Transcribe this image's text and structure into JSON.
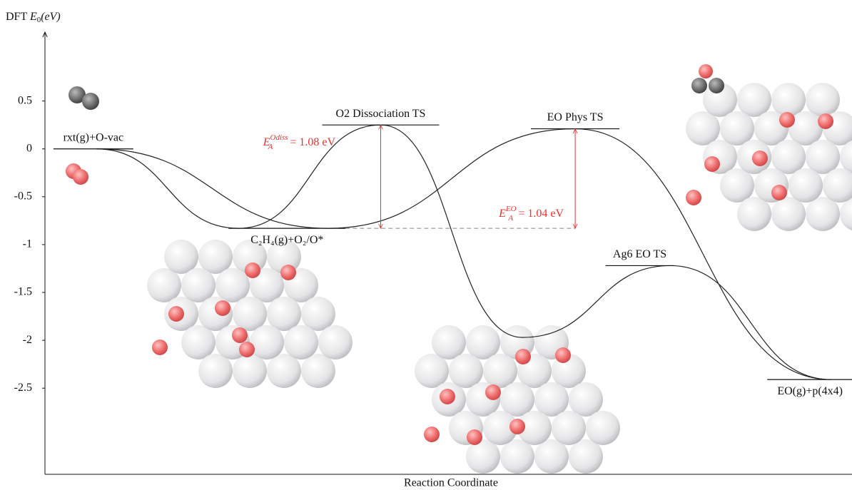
{
  "chart_data": {
    "type": "energy-diagram",
    "ylabel": {
      "prefix": "DFT",
      "symbol": "E",
      "sub": "0",
      "unit": "(eV)"
    },
    "xlabel": "Reaction Coordinate",
    "xlim": [
      0,
      10
    ],
    "ylim": [
      -3.4,
      1.22
    ],
    "yticks": [
      0.5,
      0,
      -0.5,
      -1,
      -1.5,
      -2,
      -2.5
    ],
    "states": [
      {
        "name": "rxt(g)+O-vac",
        "x": 0.6,
        "energy": 0
      },
      {
        "name": "C₂H₄(g)+O₂/O*",
        "x": 3.0,
        "energy": -0.83
      },
      {
        "name": "O2 Dissociation TS",
        "x": 4.16,
        "energy": 0.25
      },
      {
        "name": "EO Phys TS",
        "x": 6.57,
        "energy": 0.21
      },
      {
        "name": "Ag6 EO TS",
        "x": 7.37,
        "energy": -1.22
      },
      {
        "name": "EO(g)+p(4x4)",
        "x": 9.48,
        "energy": -2.41
      }
    ],
    "series": [
      {
        "color": "#222222",
        "x": [
          0.64,
          2.4,
          4.16,
          5.92,
          7.75,
          9.74
        ],
        "values": [
          0,
          -0.83,
          0.25,
          -1.97,
          -1.22,
          -2.41
        ]
      },
      {
        "color": "#222222",
        "x": [
          0.64,
          3.51,
          6.57,
          9.74
        ],
        "values": [
          0,
          -0.83,
          0.21,
          -2.41
        ]
      }
    ],
    "annotations": [
      {
        "symbol": "E",
        "sub": "A",
        "sup": "Odiss",
        "text": "= 1.08 eV",
        "color": "#e8322f"
      },
      {
        "symbol": "E",
        "sub": "A",
        "sup": "EO",
        "text": "= 1.04 eV",
        "color": "#e8322f"
      }
    ]
  }
}
